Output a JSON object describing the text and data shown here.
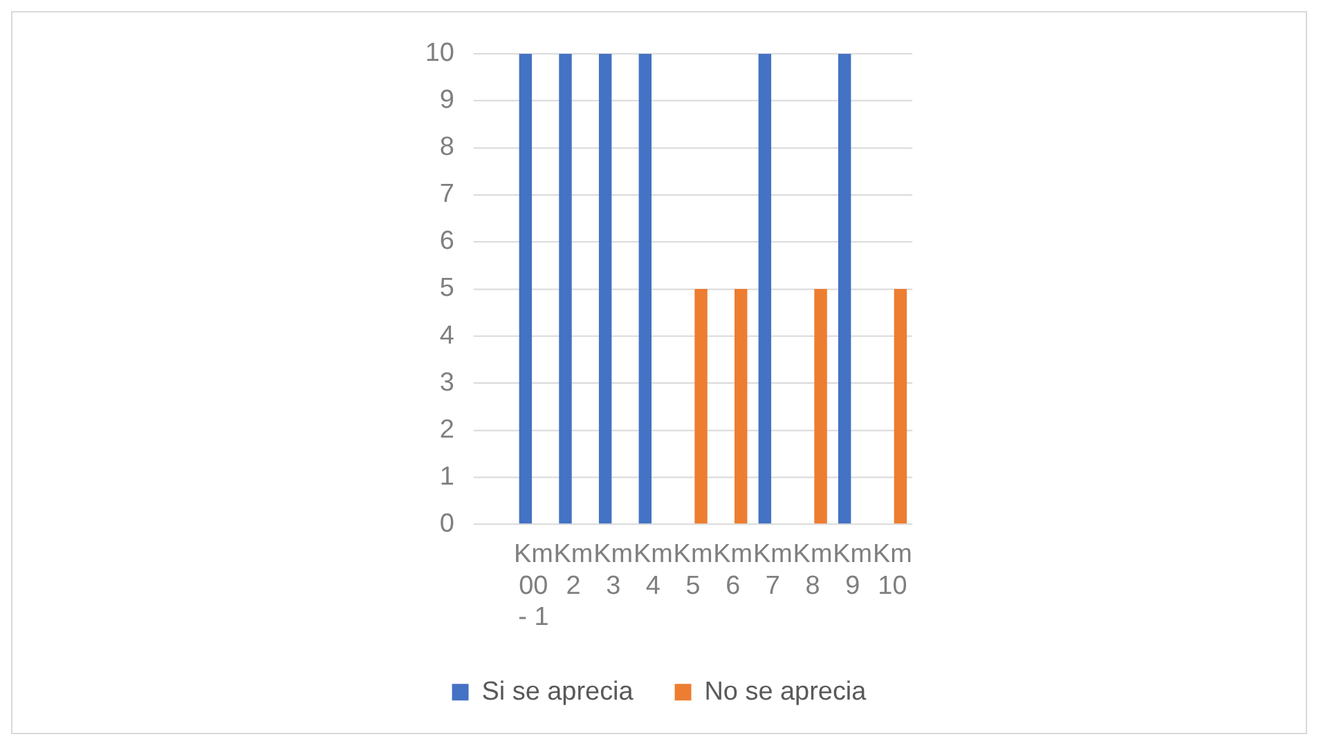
{
  "chart_data": {
    "type": "bar",
    "categories": [
      null,
      "Km 00 - 1",
      "Km 2",
      "Km 3",
      "Km 4",
      "Km 5",
      "Km 6",
      "Km 7",
      "Km 8",
      "Km 9",
      "Km 10"
    ],
    "series": [
      {
        "name": "Si se aprecia",
        "color": "#4472c4",
        "values": [
          0,
          10,
          10,
          10,
          10,
          0,
          0,
          10,
          0,
          10,
          0
        ]
      },
      {
        "name": "No se aprecia",
        "color": "#ed7d31",
        "values": [
          0,
          0,
          0,
          0,
          0,
          5,
          5,
          0,
          5,
          0,
          5
        ]
      }
    ],
    "ylim": [
      0,
      10
    ],
    "yticks": [
      0,
      1,
      2,
      3,
      4,
      5,
      6,
      7,
      8,
      9,
      10
    ],
    "grid": "y",
    "legend": "bottom"
  }
}
